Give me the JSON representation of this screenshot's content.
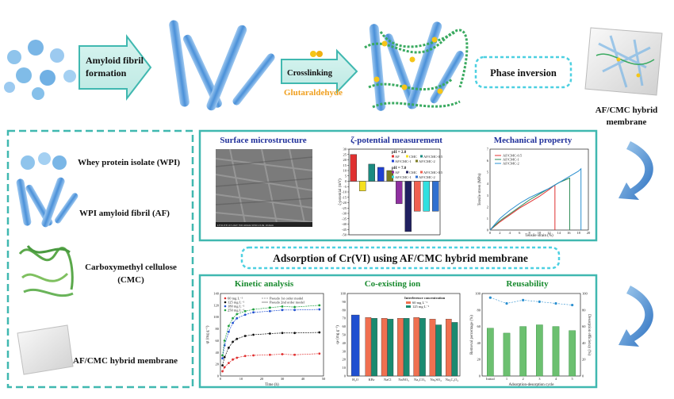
{
  "top": {
    "step1": {
      "line1": "Amyloid fibril",
      "line2": "formation"
    },
    "step2": {
      "label": "Crosslinking",
      "reagent": "Glutaraldehyde"
    },
    "step3": "Phase inversion",
    "membrane": {
      "line1": "AF/CMC hybrid",
      "line2": "membrane"
    }
  },
  "legend": {
    "wpi": "Whey protein isolate (WPI)",
    "af": "WPI amyloid fibril (AF)",
    "cmc_line1": "Carboxymethyl cellulose",
    "cmc_line2": "(CMC)",
    "membrane": "AF/CMC hybrid membrane"
  },
  "characterization": {
    "surface_title": "Surface microstructure",
    "zeta_title": "ζ-potential measurement",
    "mech_title": "Mechanical property",
    "sem_caption": "LYSUTE10   5.0kV   WD   40mm   SEM   x3.0k   10.0um"
  },
  "adsorption_title": "Adsorption of Cr(VI) using AF/CMC hybrid membrane",
  "colors": {
    "teal": "#40b8b0",
    "cyan": "#4dd0e1",
    "green": "#2ea043",
    "navy": "#1f2f9a",
    "orange": "#f0a020"
  },
  "chart_data": [
    {
      "type": "bar",
      "title": "ζ-potential measurement",
      "ylabel": "ζ-potential (mV)",
      "ylim": [
        -50,
        30
      ],
      "yticks": [
        "30",
        "25",
        "20",
        "15",
        "10",
        "5",
        "0",
        "-5",
        "-10",
        "-15",
        "-20",
        "-25",
        "-30",
        "-35",
        "-40",
        "-45",
        "-50"
      ],
      "legend_groups": [
        {
          "heading": "pH = 2.0",
          "entries": [
            "AF",
            "CMC",
            "AF/CMC-0.5",
            "AF/CMC-1",
            "AF/CMC-2"
          ]
        },
        {
          "heading": "pH = 7.0",
          "entries": [
            "AF",
            "CMC",
            "AF/CMC-0.5",
            "AF/CMC-1",
            "AF/CMC-2"
          ]
        }
      ],
      "series": [
        {
          "name": "pH = 2.0",
          "values": [
            25,
            -9,
            16,
            13,
            10
          ],
          "colors": [
            "#e03030",
            "#f5e020",
            "#1a8a80",
            "#2040d0",
            "#7a7a20"
          ]
        },
        {
          "name": "pH = 7.0",
          "values": [
            -21,
            -47,
            -28,
            -28,
            -28
          ],
          "colors": [
            "#9030a0",
            "#202060",
            "#f06050",
            "#30e0e0",
            "#3070d0"
          ]
        }
      ]
    },
    {
      "type": "line",
      "title": "Mechanical property",
      "xlabel": "Tensile strain (%)",
      "ylabel": "Tensile stress (MPa)",
      "xlim": [
        0,
        20
      ],
      "ylim": [
        0,
        7
      ],
      "xticks": [
        "0",
        "2",
        "4",
        "6",
        "8",
        "10",
        "12",
        "14",
        "16",
        "18",
        "20"
      ],
      "yticks": [
        "0",
        "1",
        "2",
        "3",
        "4",
        "5",
        "6",
        "7"
      ],
      "series": [
        {
          "name": "AF/CMC-0.5",
          "color": "#e03030",
          "x": [
            0,
            2,
            4,
            6,
            8,
            10,
            12,
            13.2,
            13.2
          ],
          "y": [
            0,
            0.7,
            1.3,
            1.9,
            2.4,
            2.9,
            3.5,
            3.9,
            0
          ]
        },
        {
          "name": "AF/CMC-1",
          "color": "#2e8b57",
          "x": [
            0,
            2,
            4,
            6,
            8,
            10,
            12,
            14,
            16.2,
            16.2
          ],
          "y": [
            0,
            0.8,
            1.4,
            2.0,
            2.6,
            3.1,
            3.6,
            4.1,
            4.5,
            0
          ]
        },
        {
          "name": "AF/CMC-2",
          "color": "#2a8fd0",
          "x": [
            0,
            2,
            4,
            6,
            8,
            10,
            12,
            14,
            16,
            18,
            18.5,
            18.5
          ],
          "y": [
            0,
            1.0,
            1.7,
            2.3,
            2.8,
            3.2,
            3.6,
            4.1,
            4.6,
            5.1,
            5.3,
            0
          ]
        }
      ]
    },
    {
      "type": "scatter",
      "title": "Kinetic analysis",
      "xlabel": "Time (h)",
      "ylabel": "qt (mg g⁻¹)",
      "xlim": [
        0,
        50
      ],
      "ylim": [
        0,
        140
      ],
      "xticks": [
        "0",
        "10",
        "20",
        "30",
        "40",
        "50"
      ],
      "yticks": [
        "0",
        "20",
        "40",
        "60",
        "80",
        "100",
        "120",
        "140"
      ],
      "legend": [
        "60 mg L⁻¹",
        "125 mg L⁻¹",
        "180 mg L⁻¹",
        "250 mg L⁻¹",
        "Pseudo 1st order model",
        "Pseudo 2nd order model"
      ],
      "series": [
        {
          "name": "60 mg L⁻¹",
          "color": "#e03030",
          "x": [
            1,
            2,
            4,
            6,
            8,
            12,
            16,
            24,
            30,
            36,
            48
          ],
          "y": [
            8,
            15,
            22,
            28,
            31,
            34,
            35,
            36,
            37,
            36,
            38
          ]
        },
        {
          "name": "125 mg L⁻¹",
          "color": "#111111",
          "x": [
            1,
            2,
            4,
            6,
            8,
            12,
            16,
            24,
            30,
            36,
            48
          ],
          "y": [
            18,
            32,
            48,
            58,
            63,
            68,
            70,
            72,
            73,
            73,
            74
          ]
        },
        {
          "name": "180 mg L⁻¹",
          "color": "#2050d0",
          "x": [
            1,
            2,
            4,
            6,
            8,
            12,
            16,
            24,
            30,
            36,
            48
          ],
          "y": [
            30,
            52,
            75,
            90,
            98,
            104,
            108,
            110,
            112,
            112,
            113
          ]
        },
        {
          "name": "250 mg L⁻¹",
          "color": "#20a040",
          "x": [
            1,
            2,
            4,
            6,
            8,
            12,
            16,
            24,
            30,
            36,
            48
          ],
          "y": [
            35,
            60,
            85,
            98,
            105,
            110,
            113,
            116,
            118,
            117,
            120
          ]
        }
      ]
    },
    {
      "type": "bar",
      "title": "Co-existing ion",
      "ylabel": "qe (mg g⁻¹)",
      "ylim": [
        0,
        100
      ],
      "yticks": [
        "0",
        "10",
        "20",
        "30",
        "40",
        "50",
        "60",
        "70",
        "80",
        "90",
        "100"
      ],
      "legend_title": "Interference concentration",
      "categories": [
        "H₂O",
        "KBr",
        "NaCl",
        "NaNO₃",
        "Na₂CO₃",
        "Na₂SO₄",
        "Na₂C₂O₄"
      ],
      "series": [
        {
          "name": "60 mg L⁻¹",
          "color": "#f07050",
          "values": [
            null,
            71,
            70,
            70,
            71,
            69,
            69
          ]
        },
        {
          "name": "125 mg L⁻¹",
          "color": "#1a8a70",
          "values": [
            null,
            70,
            69,
            70,
            70,
            62,
            65
          ]
        },
        {
          "name": "H₂O",
          "color": "#2050d0",
          "values": [
            74,
            null,
            null,
            null,
            null,
            null,
            null
          ]
        }
      ]
    },
    {
      "type": "bar",
      "title": "Reusability",
      "xlabel": "Adsorption-desorption cycle",
      "ylabel": "Removal percentage (%)",
      "ylabel_right": "Desorption efficiency (%)",
      "ylim": [
        0,
        100
      ],
      "yticks": [
        "0",
        "20",
        "40",
        "60",
        "80",
        "100"
      ],
      "categories": [
        "Initial",
        "1",
        "2",
        "3",
        "4",
        "5"
      ],
      "series": [
        {
          "name": "Removal percentage (%)",
          "color": "#6cc070",
          "values": [
            58,
            52,
            60,
            62,
            60,
            55
          ]
        },
        {
          "name": "Desorption efficiency (%)",
          "color": "#2a8fd0",
          "values": [
            95,
            88,
            92,
            90,
            88,
            86
          ]
        }
      ]
    }
  ]
}
